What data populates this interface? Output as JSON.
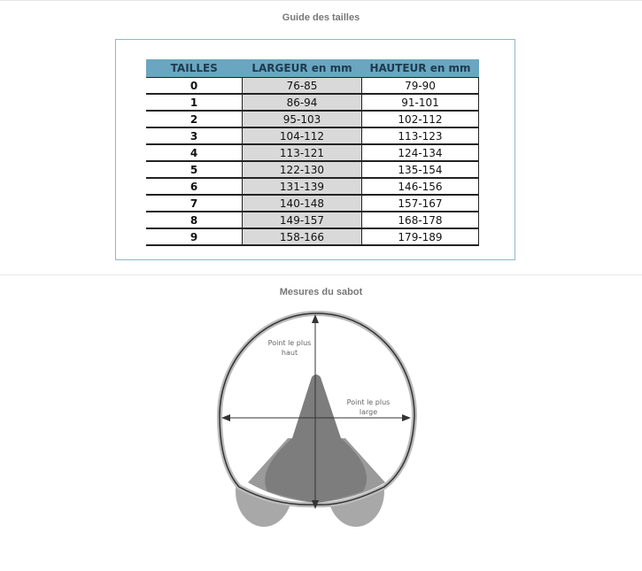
{
  "size_guide": {
    "title": "Guide des tailles",
    "headers": [
      "TAILLES",
      "LARGEUR en mm",
      "HAUTEUR en mm"
    ],
    "rows": [
      [
        "0",
        "76-85",
        "79-90"
      ],
      [
        "1",
        "86-94",
        "91-101"
      ],
      [
        "2",
        "95-103",
        "102-112"
      ],
      [
        "3",
        "104-112",
        "113-123"
      ],
      [
        "4",
        "113-121",
        "124-134"
      ],
      [
        "5",
        "122-130",
        "135-154"
      ],
      [
        "6",
        "131-139",
        "146-156"
      ],
      [
        "7",
        "140-148",
        "157-167"
      ],
      [
        "8",
        "149-157",
        "168-178"
      ],
      [
        "9",
        "158-166",
        "179-189"
      ]
    ],
    "header_color": "#6aa6c0"
  },
  "hoof": {
    "title": "Mesures du sabot",
    "label_height_1": "Point le plus",
    "label_height_2": "haut",
    "label_width_1": "Point le plus",
    "label_width_2": "large"
  }
}
